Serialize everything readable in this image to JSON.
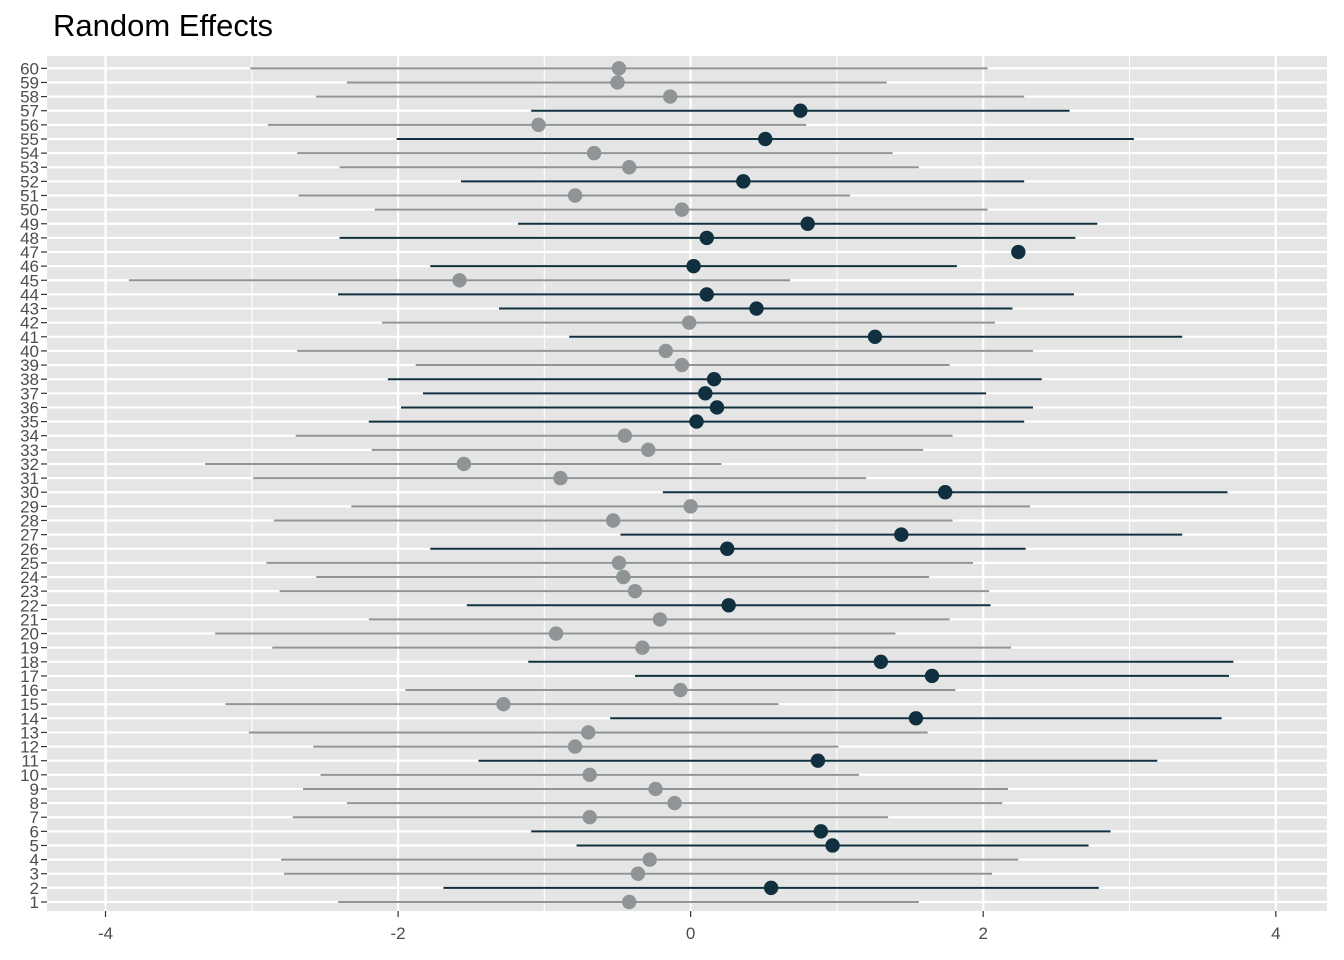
{
  "chart_data": {
    "type": "scatter",
    "subtype": "dot-and-interval",
    "title": "Random Effects",
    "xlabel": "",
    "ylabel": "",
    "xlim": [
      -4.4,
      4.35
    ],
    "x_ticks": [
      -4,
      -2,
      0,
      2,
      4
    ],
    "x_tick_labels": [
      "-4",
      "-2",
      "0",
      "2",
      "4"
    ],
    "grid": true,
    "colors": {
      "panel_background": "#e5e5e5",
      "grid_line": "#ffffff",
      "highlighted": "#11303f",
      "not_highlighted": "#8f9596"
    },
    "points": [
      {
        "label": "1",
        "estimate": -0.42,
        "lower": -2.41,
        "upper": 1.56,
        "highlighted": false
      },
      {
        "label": "2",
        "estimate": 0.55,
        "lower": -1.69,
        "upper": 2.79,
        "highlighted": true
      },
      {
        "label": "3",
        "estimate": -0.36,
        "lower": -2.78,
        "upper": 2.06,
        "highlighted": false
      },
      {
        "label": "4",
        "estimate": -0.28,
        "lower": -2.8,
        "upper": 2.24,
        "highlighted": false
      },
      {
        "label": "5",
        "estimate": 0.97,
        "lower": -0.78,
        "upper": 2.72,
        "highlighted": true
      },
      {
        "label": "6",
        "estimate": 0.89,
        "lower": -1.09,
        "upper": 2.87,
        "highlighted": true
      },
      {
        "label": "7",
        "estimate": -0.69,
        "lower": -2.72,
        "upper": 1.35,
        "highlighted": false
      },
      {
        "label": "8",
        "estimate": -0.11,
        "lower": -2.35,
        "upper": 2.13,
        "highlighted": false
      },
      {
        "label": "9",
        "estimate": -0.24,
        "lower": -2.65,
        "upper": 2.17,
        "highlighted": false
      },
      {
        "label": "10",
        "estimate": -0.69,
        "lower": -2.53,
        "upper": 1.15,
        "highlighted": false
      },
      {
        "label": "11",
        "estimate": 0.87,
        "lower": -1.45,
        "upper": 3.19,
        "highlighted": true
      },
      {
        "label": "12",
        "estimate": -0.79,
        "lower": -2.58,
        "upper": 1.01,
        "highlighted": false
      },
      {
        "label": "13",
        "estimate": -0.7,
        "lower": -3.02,
        "upper": 1.62,
        "highlighted": false
      },
      {
        "label": "14",
        "estimate": 1.54,
        "lower": -0.55,
        "upper": 3.63,
        "highlighted": true
      },
      {
        "label": "15",
        "estimate": -1.28,
        "lower": -3.18,
        "upper": 0.6,
        "highlighted": false
      },
      {
        "label": "16",
        "estimate": -0.07,
        "lower": -1.95,
        "upper": 1.81,
        "highlighted": false
      },
      {
        "label": "17",
        "estimate": 1.65,
        "lower": -0.38,
        "upper": 3.68,
        "highlighted": true
      },
      {
        "label": "18",
        "estimate": 1.3,
        "lower": -1.11,
        "upper": 3.71,
        "highlighted": true
      },
      {
        "label": "19",
        "estimate": -0.33,
        "lower": -2.86,
        "upper": 2.19,
        "highlighted": false
      },
      {
        "label": "20",
        "estimate": -0.92,
        "lower": -3.25,
        "upper": 1.4,
        "highlighted": false
      },
      {
        "label": "21",
        "estimate": -0.21,
        "lower": -2.2,
        "upper": 1.77,
        "highlighted": false
      },
      {
        "label": "22",
        "estimate": 0.26,
        "lower": -1.53,
        "upper": 2.05,
        "highlighted": true
      },
      {
        "label": "23",
        "estimate": -0.38,
        "lower": -2.81,
        "upper": 2.04,
        "highlighted": false
      },
      {
        "label": "24",
        "estimate": -0.46,
        "lower": -2.56,
        "upper": 1.63,
        "highlighted": false
      },
      {
        "label": "25",
        "estimate": -0.49,
        "lower": -2.9,
        "upper": 1.93,
        "highlighted": false
      },
      {
        "label": "26",
        "estimate": 0.25,
        "lower": -1.78,
        "upper": 2.29,
        "highlighted": true
      },
      {
        "label": "27",
        "estimate": 1.44,
        "lower": -0.48,
        "upper": 3.36,
        "highlighted": true
      },
      {
        "label": "28",
        "estimate": -0.53,
        "lower": -2.85,
        "upper": 1.79,
        "highlighted": false
      },
      {
        "label": "29",
        "estimate": 0.0,
        "lower": -2.32,
        "upper": 2.32,
        "highlighted": false
      },
      {
        "label": "30",
        "estimate": 1.74,
        "lower": -0.19,
        "upper": 3.67,
        "highlighted": true
      },
      {
        "label": "31",
        "estimate": -0.89,
        "lower": -2.99,
        "upper": 1.2,
        "highlighted": false
      },
      {
        "label": "32",
        "estimate": -1.55,
        "lower": -3.32,
        "upper": 0.21,
        "highlighted": false
      },
      {
        "label": "33",
        "estimate": -0.29,
        "lower": -2.18,
        "upper": 1.59,
        "highlighted": false
      },
      {
        "label": "34",
        "estimate": -0.45,
        "lower": -2.7,
        "upper": 1.79,
        "highlighted": false
      },
      {
        "label": "35",
        "estimate": 0.04,
        "lower": -2.2,
        "upper": 2.28,
        "highlighted": true
      },
      {
        "label": "36",
        "estimate": 0.18,
        "lower": -1.98,
        "upper": 2.34,
        "highlighted": true
      },
      {
        "label": "37",
        "estimate": 0.1,
        "lower": -1.83,
        "upper": 2.02,
        "highlighted": true
      },
      {
        "label": "38",
        "estimate": 0.16,
        "lower": -2.07,
        "upper": 2.4,
        "highlighted": true
      },
      {
        "label": "39",
        "estimate": -0.06,
        "lower": -1.88,
        "upper": 1.77,
        "highlighted": false
      },
      {
        "label": "40",
        "estimate": -0.17,
        "lower": -2.69,
        "upper": 2.34,
        "highlighted": false
      },
      {
        "label": "41",
        "estimate": 1.26,
        "lower": -0.83,
        "upper": 3.36,
        "highlighted": true
      },
      {
        "label": "42",
        "estimate": -0.01,
        "lower": -2.11,
        "upper": 2.08,
        "highlighted": false
      },
      {
        "label": "43",
        "estimate": 0.45,
        "lower": -1.31,
        "upper": 2.2,
        "highlighted": true
      },
      {
        "label": "44",
        "estimate": 0.11,
        "lower": -2.41,
        "upper": 2.62,
        "highlighted": true
      },
      {
        "label": "45",
        "estimate": -1.58,
        "lower": -3.84,
        "upper": 0.68,
        "highlighted": false
      },
      {
        "label": "46",
        "estimate": 0.02,
        "lower": -1.78,
        "upper": 1.82,
        "highlighted": true
      },
      {
        "label": "47",
        "estimate": 2.24,
        "lower": 2.24,
        "upper": 2.24,
        "highlighted": true
      },
      {
        "label": "48",
        "estimate": 0.11,
        "lower": -2.4,
        "upper": 2.63,
        "highlighted": true
      },
      {
        "label": "49",
        "estimate": 0.8,
        "lower": -1.18,
        "upper": 2.78,
        "highlighted": true
      },
      {
        "label": "50",
        "estimate": -0.06,
        "lower": -2.16,
        "upper": 2.03,
        "highlighted": false
      },
      {
        "label": "51",
        "estimate": -0.79,
        "lower": -2.68,
        "upper": 1.09,
        "highlighted": false
      },
      {
        "label": "52",
        "estimate": 0.36,
        "lower": -1.57,
        "upper": 2.28,
        "highlighted": true
      },
      {
        "label": "53",
        "estimate": -0.42,
        "lower": -2.4,
        "upper": 1.56,
        "highlighted": false
      },
      {
        "label": "54",
        "estimate": -0.66,
        "lower": -2.69,
        "upper": 1.38,
        "highlighted": false
      },
      {
        "label": "55",
        "estimate": 0.51,
        "lower": -2.01,
        "upper": 3.03,
        "highlighted": true
      },
      {
        "label": "56",
        "estimate": -1.04,
        "lower": -2.89,
        "upper": 0.79,
        "highlighted": false
      },
      {
        "label": "57",
        "estimate": 0.75,
        "lower": -1.09,
        "upper": 2.59,
        "highlighted": true
      },
      {
        "label": "58",
        "estimate": -0.14,
        "lower": -2.56,
        "upper": 2.28,
        "highlighted": false
      },
      {
        "label": "59",
        "estimate": -0.5,
        "lower": -2.35,
        "upper": 1.34,
        "highlighted": false
      },
      {
        "label": "60",
        "estimate": -0.49,
        "lower": -3.01,
        "upper": 2.03,
        "highlighted": false
      }
    ]
  }
}
